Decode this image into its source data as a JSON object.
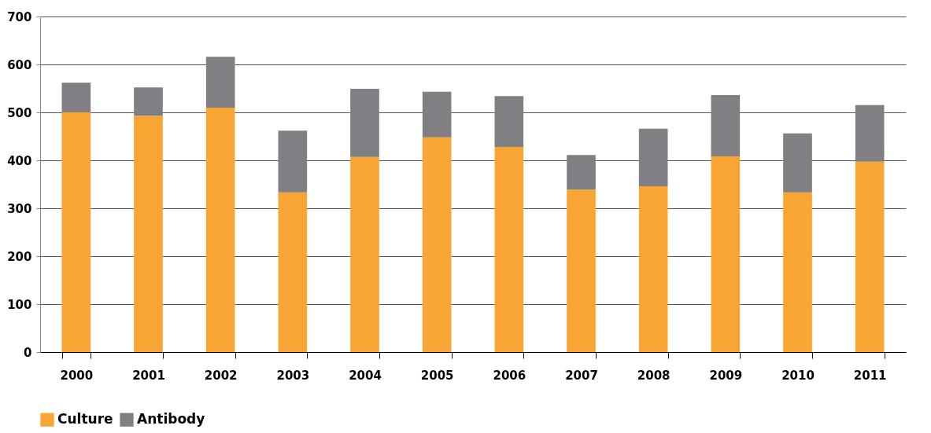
{
  "chart_data": {
    "type": "bar",
    "stacked": true,
    "categories": [
      "2000",
      "2001",
      "2002",
      "2003",
      "2004",
      "2005",
      "2006",
      "2007",
      "2008",
      "2009",
      "2010",
      "2011"
    ],
    "series": [
      {
        "name": "Culture",
        "color": "#f9a533",
        "values": [
          500,
          493,
          510,
          333,
          407,
          448,
          428,
          339,
          346,
          408,
          333,
          397
        ]
      },
      {
        "name": "Antibody",
        "color": "#808084",
        "values": [
          62,
          59,
          106,
          129,
          142,
          95,
          106,
          72,
          120,
          128,
          123,
          118
        ]
      }
    ],
    "ylim": [
      0,
      700
    ],
    "yticks": [
      0,
      100,
      200,
      300,
      400,
      500,
      600,
      700
    ],
    "grid": "y",
    "legend": "bottom"
  }
}
